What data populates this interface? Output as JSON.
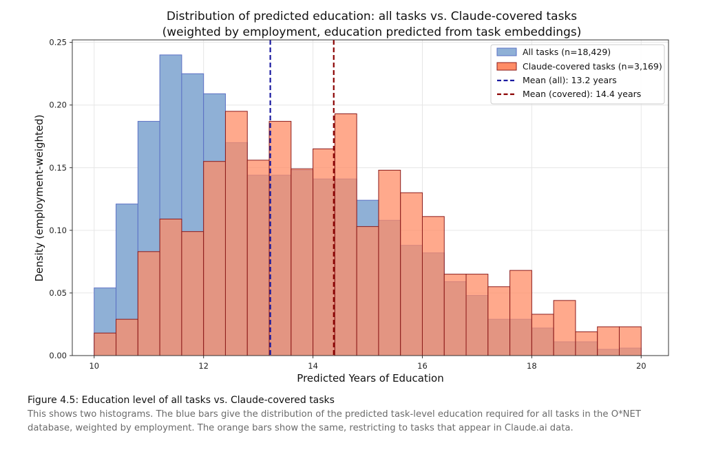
{
  "colors": {
    "all_fill": "#8fb0d6",
    "all_edge": "#5a6fc4",
    "covered_fill": "#ff8c66",
    "covered_edge": "#8b1a1a",
    "mean_all": "#1a1aa0",
    "mean_covered": "#8b0000"
  },
  "chart_data": {
    "type": "histogram",
    "title": "Distribution of predicted education: all tasks vs. Claude-covered tasks",
    "subtitle": "(weighted by employment, education predicted from task embeddings)",
    "xlabel": "Predicted Years of Education",
    "ylabel": "Density (employment-weighted)",
    "xlim": [
      9.6,
      20.5
    ],
    "ylim": [
      0,
      0.252
    ],
    "xticks": [
      10,
      12,
      14,
      16,
      18,
      20
    ],
    "xtick_labels": [
      "10",
      "12",
      "14",
      "16",
      "18",
      "20"
    ],
    "yticks": [
      0,
      0.05,
      0.1,
      0.15,
      0.2,
      0.25
    ],
    "ytick_labels": [
      "0.00",
      "0.05",
      "0.10",
      "0.15",
      "0.20",
      "0.25"
    ],
    "grid": true,
    "bin_edges": [
      10.0,
      10.4,
      10.8,
      11.2,
      11.6,
      12.0,
      12.4,
      12.8,
      13.2,
      13.6,
      14.0,
      14.4,
      14.8,
      15.2,
      15.6,
      16.0,
      16.4,
      16.8,
      17.2,
      17.6,
      18.0,
      18.4,
      18.8,
      19.2,
      19.6,
      20.0
    ],
    "series": [
      {
        "name": "All tasks (n=18,429)",
        "values": [
          0.054,
          0.121,
          0.187,
          0.24,
          0.225,
          0.209,
          0.17,
          0.144,
          0.144,
          0.148,
          0.141,
          0.141,
          0.124,
          0.108,
          0.088,
          0.082,
          0.059,
          0.048,
          0.029,
          0.029,
          0.022,
          0.011,
          0.011,
          0.005,
          0.006
        ]
      },
      {
        "name": "Claude-covered tasks (n=3,169)",
        "values": [
          0.018,
          0.029,
          0.083,
          0.109,
          0.099,
          0.155,
          0.195,
          0.156,
          0.187,
          0.149,
          0.165,
          0.193,
          0.103,
          0.148,
          0.13,
          0.111,
          0.065,
          0.065,
          0.055,
          0.068,
          0.033,
          0.044,
          0.019,
          0.023,
          0.023
        ]
      }
    ],
    "vlines": [
      {
        "name": "Mean (all): 13.2 years",
        "x": 13.22
      },
      {
        "name": "Mean (covered): 14.4 years",
        "x": 14.38
      }
    ],
    "legend_position": "top-right"
  },
  "caption": {
    "title": "Figure 4.5: Education level of all tasks vs. Claude-covered tasks",
    "line1": "This shows two histograms. The blue bars give the distribution of the predicted task-level education required for all tasks in the O*NET",
    "line2": "database, weighted by employment. The orange bars show the same, restricting to tasks that appear in Claude.ai data."
  }
}
